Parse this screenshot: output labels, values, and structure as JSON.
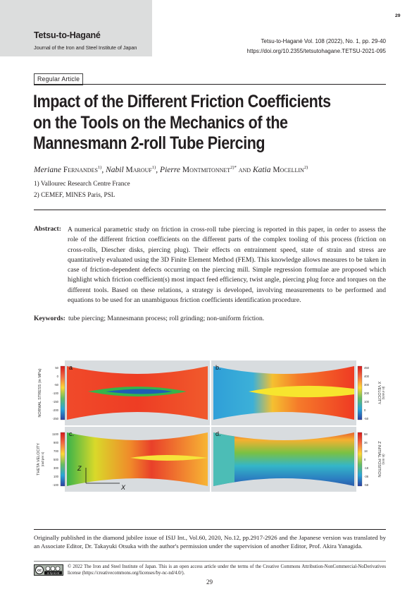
{
  "header": {
    "journal_name": "Tetsu-to-Hagané",
    "journal_subtitle": "Journal of the Iron and Steel Institute of Japan",
    "corner_page": "29",
    "citation": "Tetsu-to-Haganė Vol. 108 (2022), No. 1, pp. 29-40",
    "doi": "https://doi.org/10.2355/tetsutohagane.TETSU-2021-095"
  },
  "article": {
    "type": "Regular Article",
    "title_lines": [
      "Impact of the Different Friction Coefficients",
      "on the Tools on the Mechanics of the",
      "Mannesmann 2-roll Tube Piercing"
    ],
    "authors": [
      {
        "given": "Meriane",
        "family": "Fernandes",
        "sup": "1)"
      },
      {
        "given": "Nabil",
        "family": "Marouf",
        "sup": "1)"
      },
      {
        "given": "Pierre",
        "family": "Montmitonnet",
        "sup": "2)*"
      },
      {
        "given": "Katia",
        "family": "Mocellin",
        "sup": "2)"
      }
    ],
    "author_sep": ",",
    "author_and": "and",
    "affiliations": [
      "1) Vallourec Research Centre France",
      "2) CEMEF, MINES Paris, PSL"
    ],
    "abstract_label": "Abstract:",
    "abstract": "A numerical parametric study on friction in cross-roll tube piercing is reported in this paper, in order to assess the role of the different friction coefficients on the different parts of the complex tooling of this process (friction on cross-rolls, Diescher disks, piercing plug). Their effects on entrainment speed, state of strain and stress are quantitatively evaluated using the 3D Finite Element Method (FEM). This knowledge allows measures to be taken in case of friction-dependent defects occurring on the piercing mill. Simple regression formulae are proposed which highlight which friction coefficient(s) most impact feed efficiency, twist angle, piercing plug force and torques on the different tools. Based on these relations, a strategy is developed, involving measurements to be performed and equations to be used for an unambiguous friction coefficients identification procedure.",
    "keywords_label": "Keywords:",
    "keywords": "tube piercing; Mannesmann process; roll grinding; non-uniform friction."
  },
  "figure": {
    "panels": [
      {
        "letter": "a",
        "axis_label": "NORMAL STRESS (in MPa)",
        "ticks": [
          "50",
          "0",
          "-50",
          "-100",
          "-150",
          "-200",
          "-250"
        ]
      },
      {
        "letter": "b.",
        "axis_label": "X VELOCITY",
        "axis_unit": "(in mm/s)",
        "ticks": [
          "450",
          "400",
          "300",
          "200",
          "100",
          "0",
          "-50"
        ]
      },
      {
        "letter": "c.",
        "axis_label": "THETA VELOCITY",
        "axis_unit": "(rad per s)",
        "ticks": [
          "1100",
          "900",
          "700",
          "500",
          "300",
          "100",
          "-100"
        ]
      },
      {
        "letter": "d.",
        "axis_label": "Z INITIAL POSITION",
        "axis_unit": "(in mm)",
        "ticks": [
          "58",
          "36",
          "18",
          "0",
          "-18",
          "-36",
          "-58"
        ]
      }
    ],
    "axis_z": "Z",
    "axis_x": "X"
  },
  "footer": {
    "note": "Originally published in the diamond jubilee issue of ISIJ Int., Vol.60, 2020, No.12, pp.2917-2926 and the Japanese version was translated by an Associate Editor, Dr. Takayuki Otsuka with the author's permission under the supervision of another Editor, Prof. Akira Yanagida.",
    "cc_badge": "cc by-nc-nd",
    "license": "© 2022 The Iron and Steel Institute of Japan. This is an open access article under the terms of the Creative Commons Attribution-NonCommercial-NoDerivatives license (https://creativecommons.org/licenses/by-nc-nd/4.0/).",
    "page_number": "29"
  }
}
